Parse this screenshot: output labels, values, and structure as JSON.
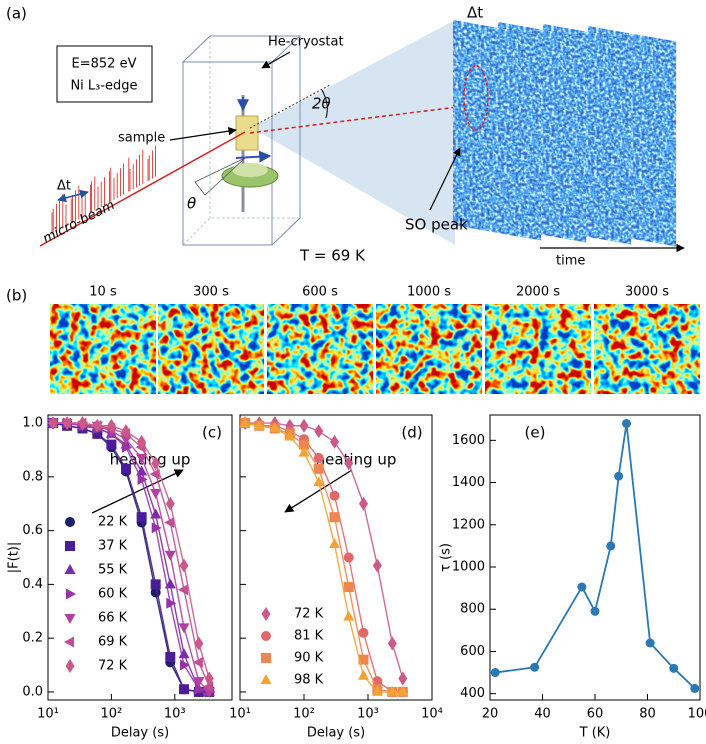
{
  "diagram": {
    "panel_label": "(a)",
    "energy": "E=852 eV",
    "edge": "Ni L₃-edge",
    "cryostat": "He-cryostat",
    "sample": "sample",
    "pulse_interval": "Δt",
    "beam": "micro-beam",
    "theta": "θ",
    "two_theta": "2θ",
    "frame_interval": "Δt",
    "peak": "SO peak",
    "time_axis": "time",
    "temperature": "T = 69 K"
  },
  "snapshots": {
    "panel_label": "(b)",
    "times": [
      "10 s",
      "300 s",
      "600 s",
      "1000 s",
      "2000 s",
      "3000 s"
    ]
  },
  "chart_data": [
    {
      "type": "line",
      "panel_label": "(c)",
      "annotation": "heating up",
      "xlabel": "Delay (s)",
      "ylabel": "|F(t)|",
      "xscale": "log",
      "xlim": [
        10,
        8000
      ],
      "xticks": [
        {
          "value": 10,
          "label": "10¹"
        },
        {
          "value": 100,
          "label": "10²"
        },
        {
          "value": 1000,
          "label": "10³"
        }
      ],
      "ylim": [
        -0.03,
        1.03
      ],
      "yticks": [
        {
          "value": 0,
          "label": "0.0"
        },
        0.2,
        0.4,
        0.6,
        0.8,
        {
          "value": 1,
          "label": "1.0"
        }
      ],
      "x": [
        12,
        20,
        35,
        60,
        100,
        170,
        300,
        500,
        850,
        1400,
        2400,
        3500
      ],
      "series": [
        {
          "name": "22 K",
          "marker": "circle",
          "color": "#1b1f6b",
          "values": [
            1,
            0.99,
            0.98,
            0.96,
            0.91,
            0.82,
            0.63,
            0.37,
            0.11,
            0.01,
            0,
            0
          ]
        },
        {
          "name": "37 K",
          "marker": "square",
          "color": "#4a1d96",
          "values": [
            1,
            0.99,
            0.98,
            0.96,
            0.92,
            0.83,
            0.65,
            0.4,
            0.13,
            0.01,
            0,
            0
          ]
        },
        {
          "name": "55 K",
          "marker": "triangle-up",
          "color": "#7a2ba6",
          "values": [
            1,
            1,
            0.99,
            0.98,
            0.96,
            0.92,
            0.82,
            0.66,
            0.4,
            0.14,
            0.01,
            0
          ]
        },
        {
          "name": "60 K",
          "marker": "triangle-right",
          "color": "#9833a7",
          "values": [
            1,
            1,
            0.99,
            0.98,
            0.96,
            0.91,
            0.79,
            0.61,
            0.33,
            0.1,
            0.01,
            0
          ]
        },
        {
          "name": "66 K",
          "marker": "triangle-down",
          "color": "#b1409f",
          "values": [
            1,
            1,
            0.99,
            0.99,
            0.97,
            0.94,
            0.87,
            0.74,
            0.51,
            0.24,
            0.04,
            0
          ]
        },
        {
          "name": "69 K",
          "marker": "triangle-left",
          "color": "#c24d94",
          "values": [
            1,
            1,
            1,
            0.99,
            0.98,
            0.96,
            0.91,
            0.81,
            0.63,
            0.38,
            0.11,
            0.02
          ]
        },
        {
          "name": "72 K",
          "marker": "diamond",
          "color": "#cc5a88",
          "values": [
            1,
            1,
            1,
            0.99,
            0.99,
            0.97,
            0.93,
            0.85,
            0.7,
            0.47,
            0.18,
            0.05
          ]
        }
      ]
    },
    {
      "type": "line",
      "panel_label": "(d)",
      "annotation": "heating up",
      "xlabel": "Delay (s)",
      "xscale": "log",
      "xlim": [
        10,
        10000
      ],
      "xticks": [
        {
          "value": 10,
          "label": "10¹"
        },
        {
          "value": 100,
          "label": "10²"
        },
        {
          "value": 1000,
          "label": "10³"
        },
        {
          "value": 10000,
          "label": "10⁴"
        }
      ],
      "ylim": [
        -0.03,
        1.03
      ],
      "yticks": [
        0,
        0.2,
        0.4,
        0.6,
        0.8,
        1
      ],
      "x": [
        12,
        20,
        35,
        60,
        100,
        170,
        300,
        500,
        850,
        1400,
        2400,
        3500
      ],
      "series": [
        {
          "name": "72 K",
          "marker": "diamond",
          "color": "#cc5a88",
          "values": [
            1,
            1,
            1,
            0.99,
            0.99,
            0.97,
            0.93,
            0.85,
            0.7,
            0.47,
            0.18,
            0.05
          ]
        },
        {
          "name": "81 K",
          "marker": "circle",
          "color": "#e0676c",
          "values": [
            1,
            0.99,
            0.99,
            0.97,
            0.94,
            0.87,
            0.73,
            0.5,
            0.22,
            0.04,
            0,
            0
          ]
        },
        {
          "name": "90 K",
          "marker": "square",
          "color": "#ee8650",
          "values": [
            1,
            0.99,
            0.98,
            0.96,
            0.92,
            0.83,
            0.65,
            0.39,
            0.12,
            0.01,
            0,
            0
          ]
        },
        {
          "name": "98 K",
          "marker": "triangle-up",
          "color": "#f4a233",
          "values": [
            1,
            0.99,
            0.98,
            0.95,
            0.89,
            0.78,
            0.55,
            0.28,
            0.06,
            0,
            0,
            0
          ]
        }
      ]
    },
    {
      "type": "line",
      "panel_label": "(e)",
      "xlabel": "T (K)",
      "ylabel": "τ (s)",
      "color": "#2a78b5",
      "xlim": [
        20,
        100
      ],
      "xticks": [
        20,
        40,
        60,
        80,
        100
      ],
      "ylim": [
        370,
        1720
      ],
      "yticks": [
        400,
        600,
        800,
        1000,
        1200,
        1400,
        1600
      ],
      "x": [
        22,
        37,
        55,
        60,
        66,
        69,
        72,
        81,
        90,
        98
      ],
      "values": [
        500,
        525,
        905,
        790,
        1100,
        1430,
        1680,
        640,
        520,
        425
      ]
    }
  ]
}
